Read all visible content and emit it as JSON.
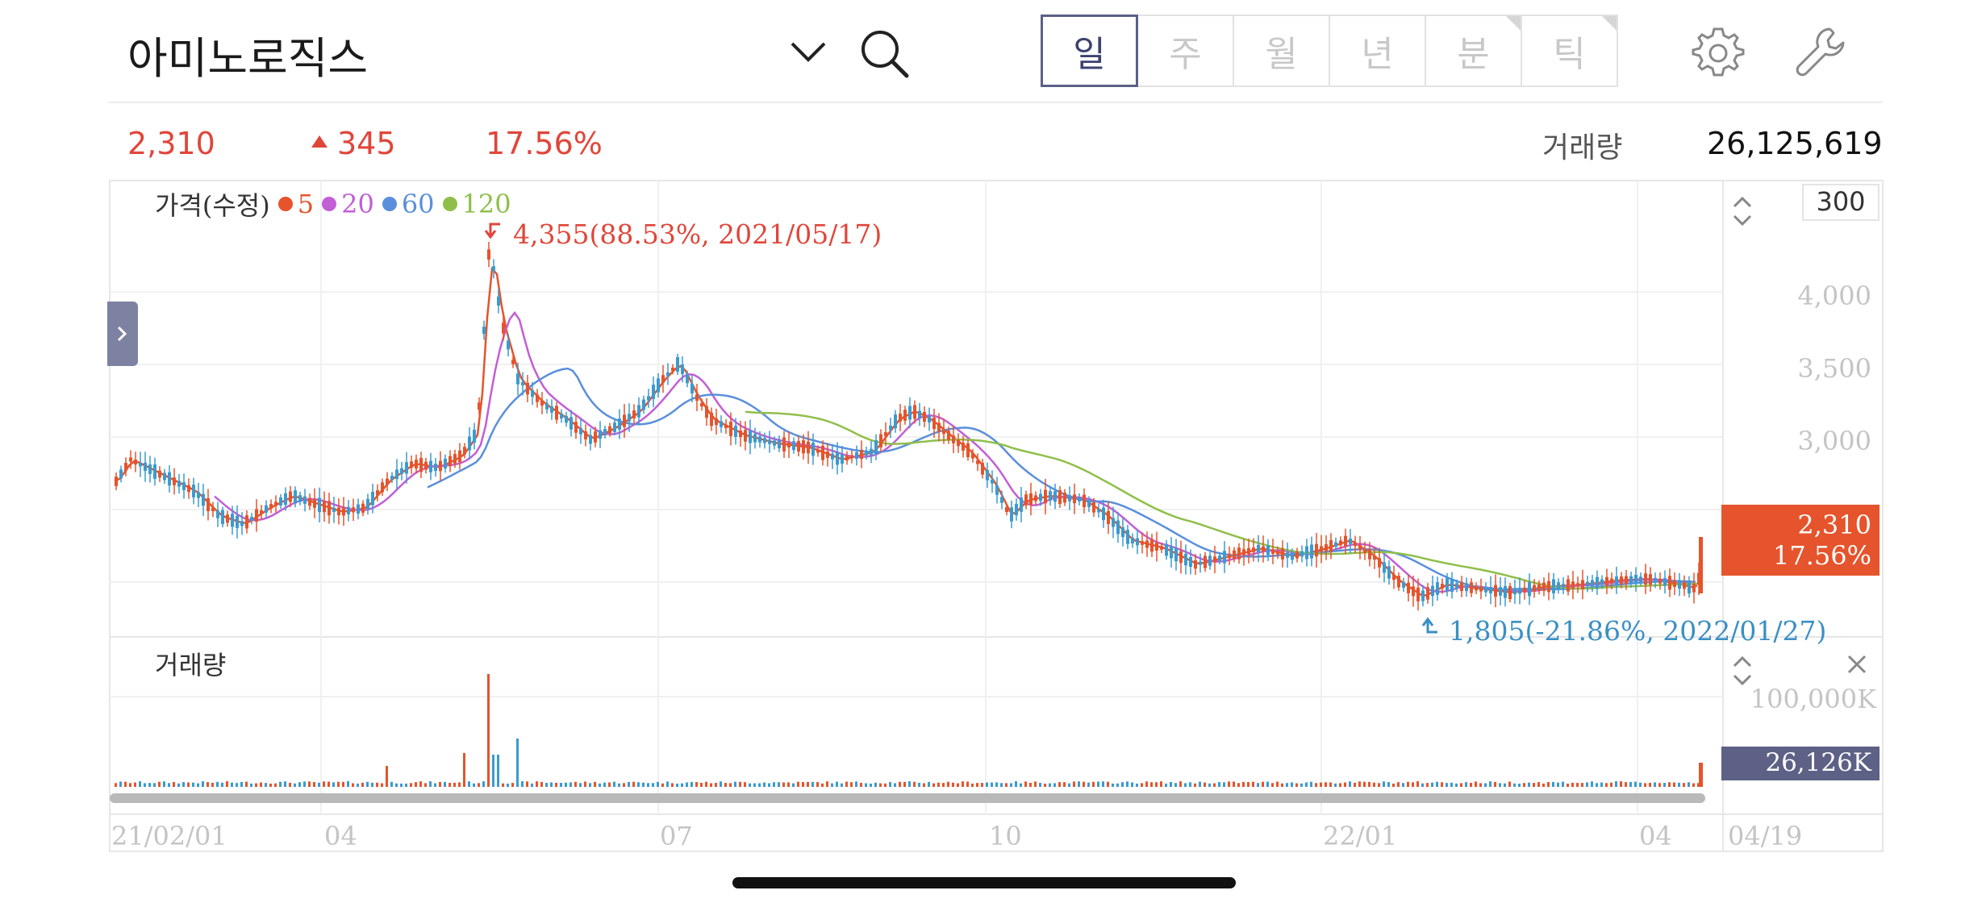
{
  "header": {
    "stock_name": "아미노로직스",
    "tabs": [
      {
        "label": "일",
        "active": true
      },
      {
        "label": "주",
        "active": false
      },
      {
        "label": "월",
        "active": false
      },
      {
        "label": "년",
        "active": false
      },
      {
        "label": "분",
        "active": false
      },
      {
        "label": "틱",
        "active": false
      }
    ],
    "icons": [
      "chevron-down-icon",
      "search-icon",
      "gear-icon",
      "wrench-icon"
    ]
  },
  "quote": {
    "price": "2,310",
    "change": "345",
    "change_pct": "17.56%",
    "volume_label": "거래량",
    "volume": "26,125,619"
  },
  "chart_data": {
    "type": "candlestick",
    "legend": {
      "title": "가격(수정)",
      "ma": [
        {
          "label": "5",
          "color": "#e5542c"
        },
        {
          "label": "20",
          "color": "#c25ed6"
        },
        {
          "label": "60",
          "color": "#5b8fdc"
        },
        {
          "label": "120",
          "color": "#8fbf4a"
        }
      ]
    },
    "price_axis": {
      "ticks": [
        "4,000",
        "3,500",
        "3,000"
      ],
      "scale_box": "300"
    },
    "high_annotation": "4,355(88.53%, 2021/05/17)",
    "low_annotation": "1,805(-21.86%, 2022/01/27)",
    "current_price_tag": {
      "price": "2,310",
      "pct": "17.56%"
    },
    "volume_panel": {
      "title": "거래량",
      "axis_label": "100,000K",
      "current": "26,126K"
    },
    "x_labels": [
      "21/02/01",
      "04",
      "07",
      "10",
      "22/01",
      "04"
    ],
    "x_right_label": "04/19",
    "colors": {
      "up": "#e5542c",
      "down": "#3a9bd0"
    }
  }
}
